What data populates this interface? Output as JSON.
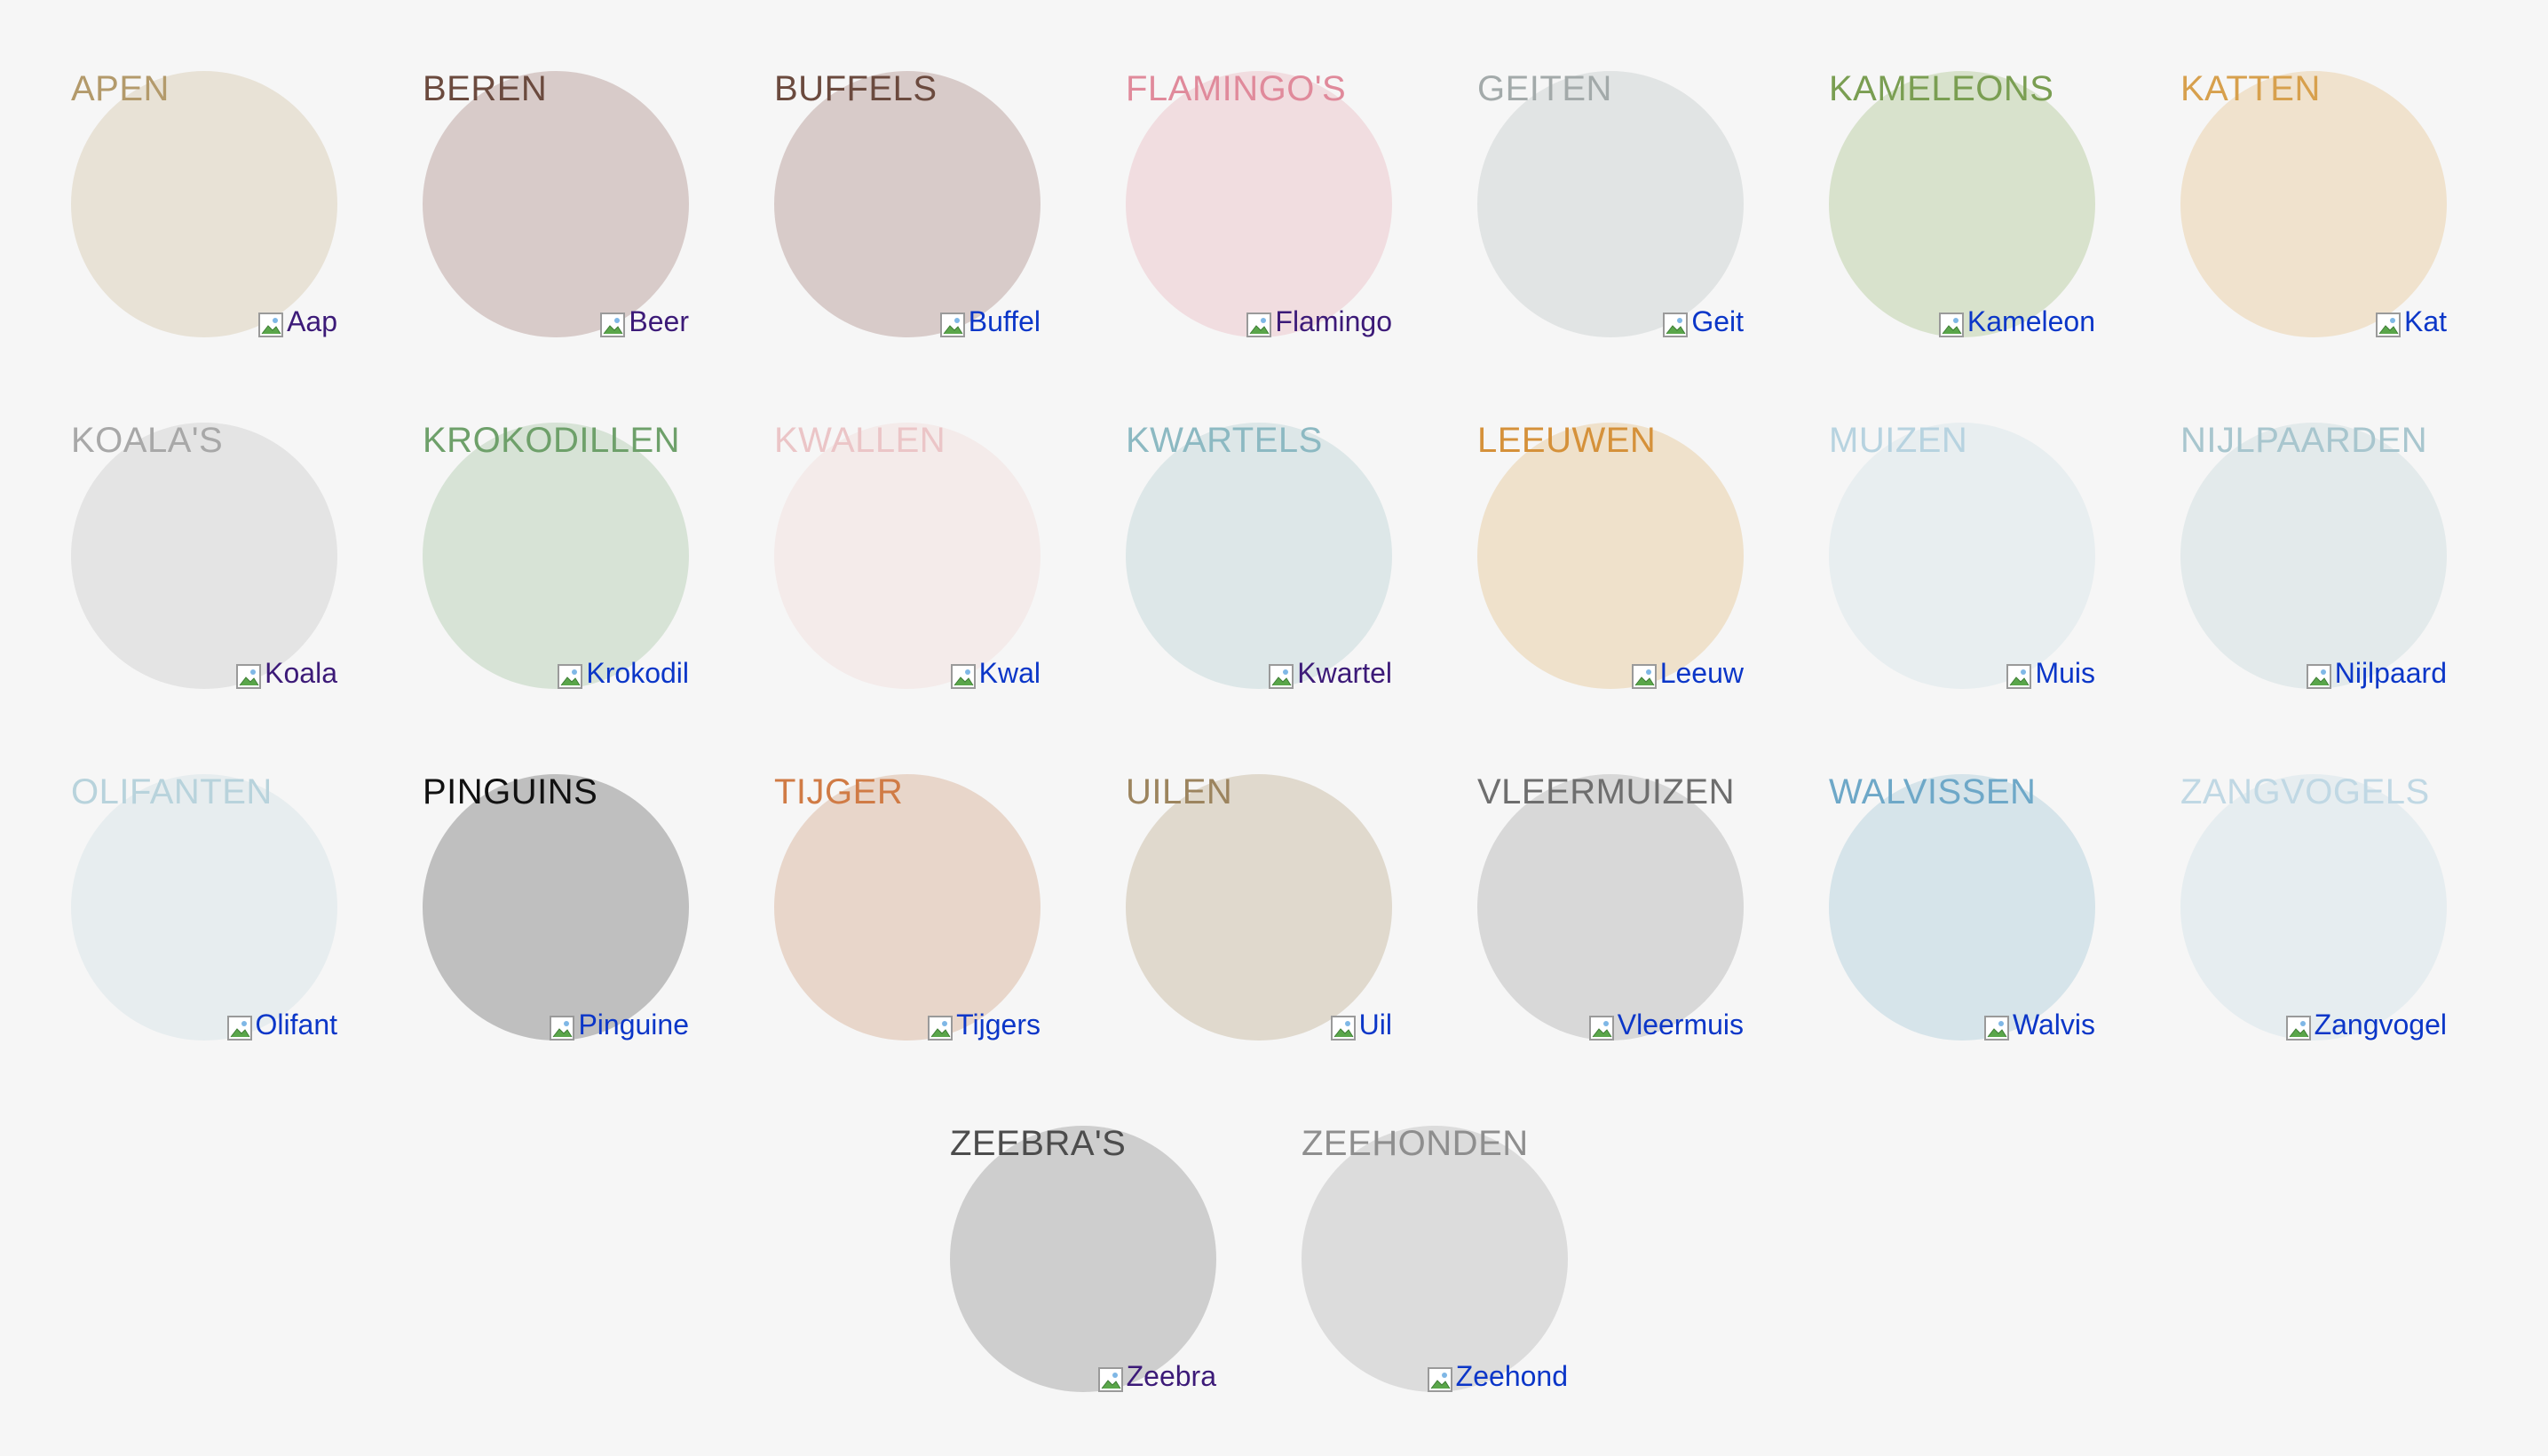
{
  "animals": [
    {
      "title": "APEN",
      "alt": "Aap",
      "title_color": "#b39a6b",
      "circle_color": "#e8e2d6",
      "link_color": "#3c1a78"
    },
    {
      "title": "BEREN",
      "alt": "Beer",
      "title_color": "#6b4a3e",
      "circle_color": "#d8cbc9",
      "link_color": "#3c1a78"
    },
    {
      "title": "BUFFELS",
      "alt": "Buffel",
      "title_color": "#6b4a3e",
      "circle_color": "#d8cbc9",
      "link_color": "#0b36c8"
    },
    {
      "title": "FLAMINGO'S",
      "alt": "Flamingo",
      "title_color": "#e08a9b",
      "circle_color": "#f1dde0",
      "link_color": "#3c1a78"
    },
    {
      "title": "GEITEN",
      "alt": "Geit",
      "title_color": "#a3aaaa",
      "circle_color": "#e1e4e4",
      "link_color": "#0b36c8"
    },
    {
      "title": "KAMELEONS",
      "alt": "Kameleon",
      "title_color": "#7a9e52",
      "circle_color": "#d8e2cc",
      "link_color": "#0b36c8"
    },
    {
      "title": "KATTEN",
      "alt": "Kat",
      "title_color": "#d7a04d",
      "circle_color": "#f0e2cd",
      "link_color": "#0b36c8"
    },
    {
      "title": "KOALA'S",
      "alt": "Koala",
      "title_color": "#a8a8a8",
      "circle_color": "#e4e4e4",
      "link_color": "#3c1a78"
    },
    {
      "title": "KROKODILLEN",
      "alt": "Krokodil",
      "title_color": "#6ea06a",
      "circle_color": "#d7e3d6",
      "link_color": "#0b36c8"
    },
    {
      "title": "KWALLEN",
      "alt": "Kwal",
      "title_color": "#ebc5c7",
      "circle_color": "#f4ebea",
      "link_color": "#0b36c8"
    },
    {
      "title": "KWARTELS",
      "alt": "Kwartel",
      "title_color": "#8cb9c2",
      "circle_color": "#dde7e8",
      "link_color": "#3c1a78"
    },
    {
      "title": "LEEUWEN",
      "alt": "Leeuw",
      "title_color": "#d5913a",
      "circle_color": "#efe1cb",
      "link_color": "#0b36c8"
    },
    {
      "title": "MUIZEN",
      "alt": "Muis",
      "title_color": "#b7d3e0",
      "circle_color": "#e8eef0",
      "link_color": "#0b36c8"
    },
    {
      "title": "NIJLPAARDEN",
      "alt": "Nijlpaard",
      "title_color": "#a8c6ce",
      "circle_color": "#e3eaeb",
      "link_color": "#0b36c8"
    },
    {
      "title": "OLIFANTEN",
      "alt": "Olifant",
      "title_color": "#b8d3dc",
      "circle_color": "#e7edef",
      "link_color": "#0b36c8"
    },
    {
      "title": "PINGUINS",
      "alt": "Pinguine",
      "title_color": "#111111",
      "circle_color": "#bfbfbf",
      "link_color": "#0b36c8"
    },
    {
      "title": "TIJGER",
      "alt": "Tijgers",
      "title_color": "#d07b45",
      "circle_color": "#e8d6ca",
      "link_color": "#0b36c8"
    },
    {
      "title": "UILEN",
      "alt": "Uil",
      "title_color": "#9c845e",
      "circle_color": "#e0d9cd",
      "link_color": "#0b36c8"
    },
    {
      "title": "VLEERMUIZEN",
      "alt": "Vleermuis",
      "title_color": "#6e6e6e",
      "circle_color": "#d8d8d8",
      "link_color": "#0b36c8"
    },
    {
      "title": "WALVISSEN",
      "alt": "Walvis",
      "title_color": "#6ea8c8",
      "circle_color": "#d6e4ea",
      "link_color": "#0b36c8"
    },
    {
      "title": "ZANGVOGELS",
      "alt": "Zangvogel",
      "title_color": "#c0d8e4",
      "circle_color": "#e6edf0",
      "link_color": "#0b36c8"
    },
    {
      "title": "ZEEBRA'S",
      "alt": "Zeebra",
      "title_color": "#4c4c4c",
      "circle_color": "#cecece",
      "link_color": "#3c1a78"
    },
    {
      "title": "ZEEHONDEN",
      "alt": "Zeehond",
      "title_color": "#8e8e8e",
      "circle_color": "#dcdcdc",
      "link_color": "#0b36c8"
    }
  ]
}
